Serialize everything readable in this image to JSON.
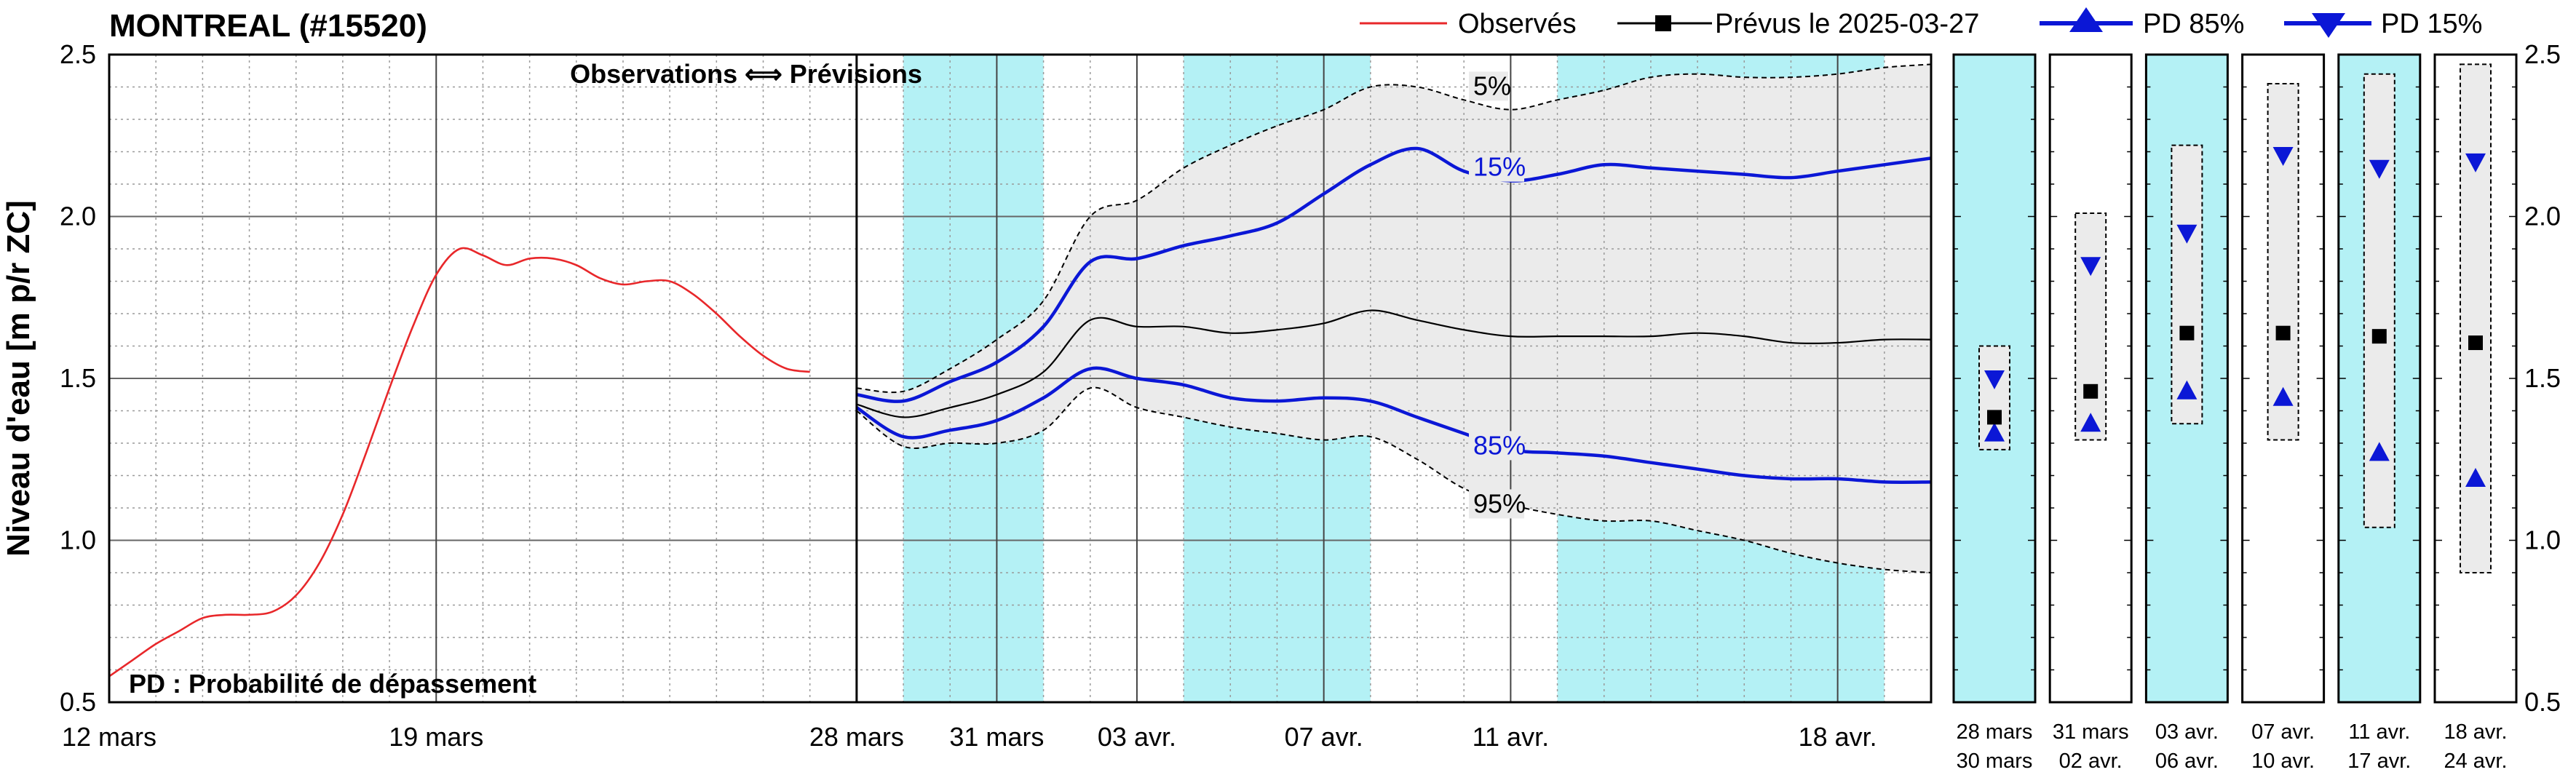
{
  "chart_data": {
    "type": "line",
    "title": "MONTREAL (#15520)",
    "ylabel": "Niveau d'eau [m p/r ZC]",
    "ylim": [
      0.5,
      2.5
    ],
    "yticks": [
      "0.5",
      "1.0",
      "1.5",
      "2.0",
      "2.5"
    ],
    "xlim_days": [
      0,
      39
    ],
    "forecast_start_day": 16,
    "grid": true,
    "divider_label": "Observations ⟺ Prévisions",
    "note": "PD : Probabilité de dépassement",
    "x_ticks": [
      {
        "day": 0,
        "label": "12 mars"
      },
      {
        "day": 7,
        "label": "19 mars"
      },
      {
        "day": 16,
        "label": "28 mars"
      },
      {
        "day": 19,
        "label": "31 mars"
      },
      {
        "day": 22,
        "label": "03 avr."
      },
      {
        "day": 26,
        "label": "07 avr."
      },
      {
        "day": 30,
        "label": "11 avr."
      },
      {
        "day": 37,
        "label": "18 avr."
      }
    ],
    "cyan_periods": [
      [
        17,
        20
      ],
      [
        23,
        27
      ],
      [
        31,
        38
      ]
    ],
    "legend": {
      "observed": "Observés",
      "forecast": "Prévus le 2025-03-27",
      "pd85": "PD 85%",
      "pd15": "PD 15%"
    },
    "colors": {
      "observed": "#e8272a",
      "forecast": "#000000",
      "pd": "#0b17d6",
      "cyan": "#b4f1f5",
      "band": "#ebebeb"
    },
    "series": [
      {
        "name": "Observés",
        "x": [
          0,
          0.5,
          1,
          1.5,
          2,
          2.5,
          3,
          3.5,
          4,
          4.5,
          5,
          5.5,
          6,
          6.5,
          7,
          7.5,
          8,
          8.5,
          9,
          9.5,
          10,
          10.5,
          11,
          11.5,
          12,
          12.5,
          13,
          13.5,
          14,
          14.5,
          15
        ],
        "y": [
          0.58,
          0.63,
          0.68,
          0.72,
          0.76,
          0.77,
          0.77,
          0.78,
          0.83,
          0.93,
          1.08,
          1.27,
          1.47,
          1.66,
          1.82,
          1.9,
          1.88,
          1.85,
          1.87,
          1.87,
          1.85,
          1.81,
          1.79,
          1.8,
          1.8,
          1.76,
          1.7,
          1.63,
          1.57,
          1.53,
          1.52
        ]
      },
      {
        "name": "5%",
        "x": [
          16,
          17,
          18,
          19,
          20,
          21,
          22,
          23,
          24,
          25,
          26,
          27,
          28,
          29,
          30,
          31,
          32,
          33,
          34,
          35,
          36,
          37,
          38,
          39
        ],
        "y": [
          1.47,
          1.46,
          1.53,
          1.62,
          1.74,
          2.0,
          2.05,
          2.15,
          2.22,
          2.28,
          2.33,
          2.4,
          2.4,
          2.36,
          2.33,
          2.36,
          2.39,
          2.43,
          2.44,
          2.43,
          2.43,
          2.44,
          2.46,
          2.47
        ]
      },
      {
        "name": "15%",
        "x": [
          16,
          17,
          18,
          19,
          20,
          21,
          22,
          23,
          24,
          25,
          26,
          27,
          28,
          29,
          30,
          31,
          32,
          33,
          34,
          35,
          36,
          37,
          38,
          39
        ],
        "y": [
          1.45,
          1.43,
          1.49,
          1.55,
          1.66,
          1.86,
          1.87,
          1.91,
          1.94,
          1.98,
          2.07,
          2.16,
          2.21,
          2.14,
          2.11,
          2.13,
          2.16,
          2.15,
          2.14,
          2.13,
          2.12,
          2.14,
          2.16,
          2.18
        ]
      },
      {
        "name": "Prévus le 2025-03-27",
        "x": [
          16,
          17,
          18,
          19,
          20,
          21,
          22,
          23,
          24,
          25,
          26,
          27,
          28,
          29,
          30,
          31,
          32,
          33,
          34,
          35,
          36,
          37,
          38,
          39
        ],
        "y": [
          1.42,
          1.38,
          1.41,
          1.45,
          1.52,
          1.68,
          1.66,
          1.66,
          1.64,
          1.65,
          1.67,
          1.71,
          1.68,
          1.65,
          1.63,
          1.63,
          1.63,
          1.63,
          1.64,
          1.63,
          1.61,
          1.61,
          1.62,
          1.62
        ]
      },
      {
        "name": "85%",
        "x": [
          16,
          17,
          18,
          19,
          20,
          21,
          22,
          23,
          24,
          25,
          26,
          27,
          28,
          29,
          30,
          31,
          32,
          33,
          34,
          35,
          36,
          37,
          38,
          39
        ],
        "y": [
          1.41,
          1.32,
          1.34,
          1.37,
          1.44,
          1.53,
          1.5,
          1.48,
          1.44,
          1.43,
          1.44,
          1.43,
          1.38,
          1.33,
          1.28,
          1.27,
          1.26,
          1.24,
          1.22,
          1.2,
          1.19,
          1.19,
          1.18,
          1.18
        ]
      },
      {
        "name": "95%",
        "x": [
          16,
          17,
          18,
          19,
          20,
          21,
          22,
          23,
          24,
          25,
          26,
          27,
          28,
          29,
          30,
          31,
          32,
          33,
          34,
          35,
          36,
          37,
          38,
          39
        ],
        "y": [
          1.4,
          1.29,
          1.3,
          1.3,
          1.34,
          1.47,
          1.41,
          1.38,
          1.35,
          1.33,
          1.31,
          1.32,
          1.25,
          1.16,
          1.11,
          1.08,
          1.06,
          1.06,
          1.03,
          1.0,
          0.96,
          0.93,
          0.91,
          0.9
        ]
      }
    ],
    "percentile_labels": [
      {
        "text": "5%",
        "day": 29.2,
        "y": 2.38
      },
      {
        "text": "15%",
        "day": 29.2,
        "y": 2.13
      },
      {
        "text": "85%",
        "day": 29.2,
        "y": 1.27
      },
      {
        "text": "95%",
        "day": 29.2,
        "y": 1.09
      }
    ],
    "periods": [
      {
        "line1": "28 mars",
        "line2": "30 mars",
        "cyan": true,
        "min": 1.28,
        "max": 1.6,
        "median": 1.38,
        "pd85": 1.33,
        "pd15": 1.5
      },
      {
        "line1": "31 mars",
        "line2": "02 avr.",
        "cyan": false,
        "min": 1.31,
        "max": 2.01,
        "median": 1.46,
        "pd85": 1.36,
        "pd15": 1.85
      },
      {
        "line1": "03 avr.",
        "line2": "06 avr.",
        "cyan": true,
        "min": 1.36,
        "max": 2.22,
        "median": 1.64,
        "pd85": 1.46,
        "pd15": 1.95
      },
      {
        "line1": "07 avr.",
        "line2": "10 avr.",
        "cyan": false,
        "min": 1.31,
        "max": 2.41,
        "median": 1.64,
        "pd85": 1.44,
        "pd15": 2.19
      },
      {
        "line1": "11 avr.",
        "line2": "17 avr.",
        "cyan": true,
        "min": 1.04,
        "max": 2.44,
        "median": 1.63,
        "pd85": 1.27,
        "pd15": 2.15
      },
      {
        "line1": "18 avr.",
        "line2": "24 avr.",
        "cyan": false,
        "min": 0.9,
        "max": 2.47,
        "median": 1.61,
        "pd85": 1.19,
        "pd15": 2.17
      }
    ]
  }
}
